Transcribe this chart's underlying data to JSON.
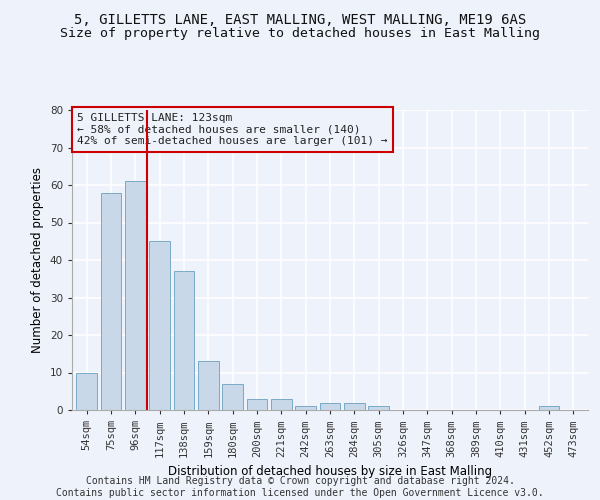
{
  "title1": "5, GILLETTS LANE, EAST MALLING, WEST MALLING, ME19 6AS",
  "title2": "Size of property relative to detached houses in East Malling",
  "xlabel": "Distribution of detached houses by size in East Malling",
  "ylabel": "Number of detached properties",
  "categories": [
    "54sqm",
    "75sqm",
    "96sqm",
    "117sqm",
    "138sqm",
    "159sqm",
    "180sqm",
    "200sqm",
    "221sqm",
    "242sqm",
    "263sqm",
    "284sqm",
    "305sqm",
    "326sqm",
    "347sqm",
    "368sqm",
    "389sqm",
    "410sqm",
    "431sqm",
    "452sqm",
    "473sqm"
  ],
  "values": [
    10,
    58,
    61,
    45,
    37,
    13,
    7,
    3,
    3,
    1,
    2,
    2,
    1,
    0,
    0,
    0,
    0,
    0,
    0,
    1,
    0
  ],
  "bar_color": "#c8d8e8",
  "bar_edge_color": "#7aaac8",
  "vline_x": 2.5,
  "vline_color": "#cc0000",
  "annotation_lines": [
    "5 GILLETTS LANE: 123sqm",
    "← 58% of detached houses are smaller (140)",
    "42% of semi-detached houses are larger (101) →"
  ],
  "annotation_box_color": "#cc0000",
  "ylim": [
    0,
    80
  ],
  "yticks": [
    0,
    10,
    20,
    30,
    40,
    50,
    60,
    70,
    80
  ],
  "footer1": "Contains HM Land Registry data © Crown copyright and database right 2024.",
  "footer2": "Contains public sector information licensed under the Open Government Licence v3.0.",
  "background_color": "#eef2fb",
  "grid_color": "#ffffff",
  "title_fontsize": 10,
  "subtitle_fontsize": 9.5,
  "axis_label_fontsize": 8.5,
  "tick_fontsize": 7.5,
  "footer_fontsize": 7,
  "annotation_fontsize": 8
}
